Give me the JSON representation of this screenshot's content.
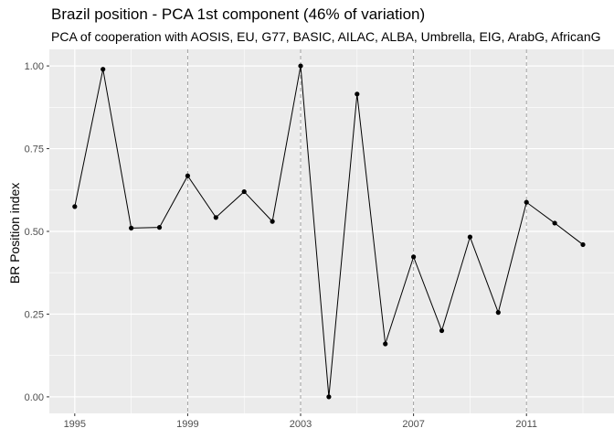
{
  "chart_data": {
    "type": "line",
    "title": "Brazil position - PCA 1st component (46% of variation)",
    "subtitle": "PCA of cooperation with AOSIS, EU, G77, BASIC, AILAC, ALBA, Umbrella, EIG, ArabG, AfricanG",
    "xlabel": "",
    "ylabel": "BR Position index",
    "x": [
      1995,
      1996,
      1997,
      1998,
      1999,
      2000,
      2001,
      2002,
      2003,
      2004,
      2005,
      2006,
      2007,
      2008,
      2009,
      2010,
      2011,
      2012,
      2013
    ],
    "values": [
      0.575,
      0.99,
      0.51,
      0.512,
      0.668,
      0.542,
      0.62,
      0.53,
      1.0,
      0.0,
      0.915,
      0.16,
      0.423,
      0.2,
      0.483,
      0.255,
      0.588,
      0.525,
      0.46
    ],
    "xlim": [
      1994.1,
      2014.1
    ],
    "ylim": [
      -0.05,
      1.05
    ],
    "x_ticks": [
      "1995",
      "1999",
      "2003",
      "2007",
      "2011"
    ],
    "y_ticks": [
      "0.00",
      "0.25",
      "0.50",
      "0.75",
      "1.00"
    ],
    "x_tick_values": [
      1995,
      1999,
      2003,
      2007,
      2011
    ],
    "y_tick_values": [
      0,
      0.25,
      0.5,
      0.75,
      1.0
    ],
    "grid": true,
    "vertical_reference_lines": [
      1999,
      2003,
      2007,
      2011
    ],
    "colors": {
      "panel_background": "#EBEBEB",
      "grid_line": "#FFFFFF",
      "line": "#000000",
      "points": "#000000",
      "reference_line": "#A0A0A0",
      "tick_text": "#4D4D4D"
    }
  }
}
